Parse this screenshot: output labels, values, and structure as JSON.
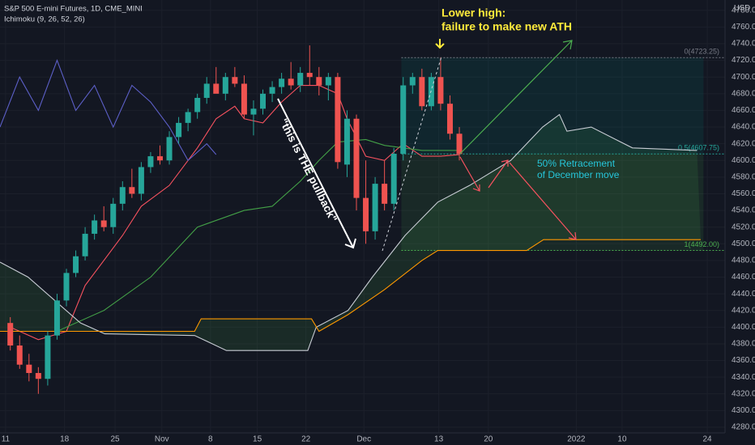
{
  "chart_data": {
    "type": "candlestick",
    "title": "S&P 500 E-mini Futures, 1D, CME_MINI",
    "subtitle": "Ichimoku (9, 26, 52, 26)",
    "currency": "USD",
    "open": [
      4405,
      4378,
      4355,
      4345,
      4338,
      4390,
      4432,
      4465,
      4485,
      4512,
      4528,
      4520,
      4548,
      4568,
      4560,
      4592,
      4605,
      4600,
      4628,
      4645,
      4658,
      4675,
      4692,
      4680,
      4700,
      4692,
      4655,
      4662,
      4680,
      4688,
      4698,
      4690,
      4705,
      4700,
      4690,
      4700,
      4595,
      4650,
      4555,
      4515,
      4572,
      4548,
      4608,
      4690,
      4700,
      4665,
      4700,
      4668,
      4632
    ],
    "high": [
      4412,
      4390,
      4368,
      4352,
      4395,
      4440,
      4470,
      4492,
      4520,
      4535,
      4545,
      4555,
      4575,
      4590,
      4598,
      4610,
      4618,
      4635,
      4652,
      4662,
      4680,
      4700,
      4712,
      4705,
      4712,
      4702,
      4672,
      4685,
      4695,
      4705,
      4718,
      4712,
      4738,
      4712,
      4705,
      4705,
      4660,
      4655,
      4600,
      4580,
      4600,
      4615,
      4700,
      4705,
      4710,
      4705,
      4723.25,
      4678,
      4640
    ],
    "low": [
      4372,
      4350,
      4335,
      4320,
      4330,
      4385,
      4425,
      4460,
      4480,
      4505,
      4515,
      4512,
      4540,
      4555,
      4552,
      4585,
      4595,
      4595,
      4620,
      4635,
      4650,
      4668,
      4685,
      4672,
      4688,
      4650,
      4630,
      4655,
      4670,
      4680,
      4685,
      4682,
      4690,
      4678,
      4672,
      4590,
      4580,
      4540,
      4500,
      4505,
      4540,
      4540,
      4600,
      4680,
      4660,
      4660,
      4660,
      4625,
      4600
    ],
    "close": [
      4378,
      4355,
      4345,
      4338,
      4390,
      4432,
      4465,
      4485,
      4512,
      4528,
      4520,
      4548,
      4568,
      4560,
      4592,
      4605,
      4600,
      4628,
      4645,
      4658,
      4675,
      4692,
      4680,
      4700,
      4692,
      4655,
      4662,
      4680,
      4688,
      4698,
      4690,
      4705,
      4700,
      4690,
      4700,
      4598,
      4650,
      4555,
      4515,
      4572,
      4548,
      4608,
      4690,
      4700,
      4665,
      4700,
      4668,
      4632,
      4607.75
    ],
    "up_color": "#26a69a",
    "down_color": "#ef5350",
    "lines": [
      {
        "color": "#f7525f",
        "x": [
          0,
          3,
          6,
          8,
          10,
          12,
          14,
          17,
          20,
          22,
          24,
          25,
          27,
          29,
          31,
          33,
          35,
          36,
          38,
          40,
          42,
          44,
          46,
          48
        ],
        "values": [
          4400,
          4385,
          4395,
          4450,
          4480,
          4510,
          4545,
          4570,
          4615,
          4650,
          4665,
          4650,
          4645,
          4670,
          4690,
          4690,
          4680,
          4650,
          4605,
          4600,
          4620,
          4605,
          4605,
          4607
        ]
      },
      {
        "color": "#43a047",
        "x": [
          0,
          5,
          10,
          15,
          20,
          25,
          28,
          31,
          33,
          35,
          38,
          40,
          44,
          48
        ],
        "values": [
          4395,
          4395,
          4420,
          4460,
          4520,
          4540,
          4545,
          4575,
          4600,
          4622,
          4625,
          4618,
          4612,
          4612
        ]
      },
      {
        "color": "#5c5fc7",
        "x": [
          -1.1,
          1,
          3,
          5,
          7,
          9,
          11,
          13,
          15,
          17,
          19,
          21,
          22
        ],
        "values": [
          4640,
          4700,
          4660,
          4720,
          4660,
          4690,
          4640,
          4690,
          4670,
          4640,
          4600,
          4620,
          4607
        ]
      },
      {
        "color": "#c8ccd4",
        "x": [
          -1.1,
          1.9,
          7.5,
          10.1,
          19.7,
          23.1,
          31.8,
          32.7,
          36.1,
          38.7,
          42.2,
          45.7,
          49.1,
          53.5,
          56.9,
          58.7,
          59.5,
          62.1,
          66.5,
          73.4
        ],
        "values": [
          4478,
          4460,
          4405,
          4392,
          4390,
          4372,
          4372,
          4400,
          4420,
          4460,
          4510,
          4550,
          4570,
          4600,
          4640,
          4655,
          4635,
          4640,
          4615,
          4612
        ]
      },
      {
        "color": "#ff9800",
        "x": [
          -1.1,
          19.7,
          20.4,
          32.2,
          33,
          36.1,
          40,
          44,
          45.7,
          55.2,
          57,
          73.8
        ],
        "values": [
          4395,
          4395,
          4410,
          4410,
          4395,
          4415,
          4445,
          4480,
          4492,
          4492,
          4505,
          4505
        ]
      }
    ],
    "fib_levels": [
      {
        "value": 4723.25,
        "label": "0(4723.25)"
      },
      {
        "value": 4607.75,
        "label": "0.5(4607.75)"
      },
      {
        "value": 4492,
        "label": "1(4492.00)"
      }
    ],
    "annotations": {
      "lower_high": [
        "Lower high:",
        "failure to make new ATH"
      ],
      "pullback": "\"this is THE pullback\"",
      "retracement": [
        "50% Retracement",
        "of December move"
      ]
    },
    "xlim": [
      -1.1,
      76.4
    ],
    "xticks": [
      {
        "value": -0.5,
        "label": "11"
      },
      {
        "value": 5.8,
        "label": "18"
      },
      {
        "value": 11.2,
        "label": "25"
      },
      {
        "value": 16.2,
        "label": "Nov"
      },
      {
        "value": 21.4,
        "label": "8"
      },
      {
        "value": 26.4,
        "label": "15"
      },
      {
        "value": 31.6,
        "label": "22"
      },
      {
        "value": 37.8,
        "label": "Dec"
      },
      {
        "value": 45.8,
        "label": "13"
      },
      {
        "value": 51.1,
        "label": "20"
      },
      {
        "value": 60.5,
        "label": "2022"
      },
      {
        "value": 65.4,
        "label": "10"
      },
      {
        "value": 74.5,
        "label": "24"
      }
    ],
    "ylim": [
      4273.2,
      4792.4
    ],
    "yticks": [
      {
        "value": 4280,
        "label": "4280.00"
      },
      {
        "value": 4300,
        "label": "4300.00"
      },
      {
        "value": 4320,
        "label": "4320.00"
      },
      {
        "value": 4340,
        "label": "4340.00"
      },
      {
        "value": 4360,
        "label": "4360.00"
      },
      {
        "value": 4380,
        "label": "4380.00"
      },
      {
        "value": 4400,
        "label": "4400.00"
      },
      {
        "value": 4420,
        "label": "4420.00"
      },
      {
        "value": 4440,
        "label": "4440.00"
      },
      {
        "value": 4460,
        "label": "4460.00"
      },
      {
        "value": 4480,
        "label": "4480.00"
      },
      {
        "value": 4500,
        "label": "4500.00"
      },
      {
        "value": 4520,
        "label": "4520.00"
      },
      {
        "value": 4540,
        "label": "4540.00"
      },
      {
        "value": 4560,
        "label": "4560.00"
      },
      {
        "value": 4580,
        "label": "4580.00"
      },
      {
        "value": 4600,
        "label": "4600.00"
      },
      {
        "value": 4620,
        "label": "4620.00"
      },
      {
        "value": 4640,
        "label": "4640.00"
      },
      {
        "value": 4660,
        "label": "4660.00"
      },
      {
        "value": 4680,
        "label": "4680.00"
      },
      {
        "value": 4700,
        "label": "4700.00"
      },
      {
        "value": 4720,
        "label": "4720.00"
      },
      {
        "value": 4740,
        "label": "4740.00"
      },
      {
        "value": 4760,
        "label": "4760.00"
      },
      {
        "value": 4780,
        "label": "4780.00"
      }
    ],
    "grid": true
  }
}
